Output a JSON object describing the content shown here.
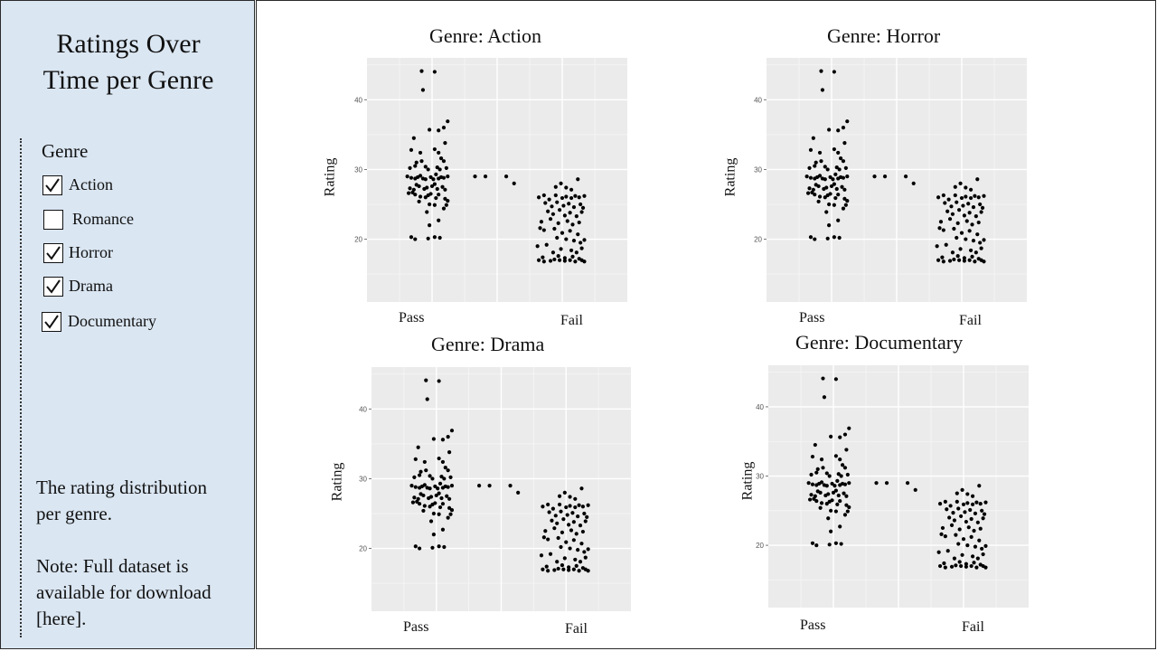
{
  "sidebar": {
    "title_line1": "Ratings Over",
    "title_line2": "Time per Genre",
    "filter_heading": "Genre",
    "genres": [
      {
        "label": "Action",
        "checked": true
      },
      {
        "label": "Romance",
        "checked": false
      },
      {
        "label": "Horror",
        "checked": true
      },
      {
        "label": "Drama",
        "checked": true
      },
      {
        "label": "Documentary",
        "checked": true
      }
    ],
    "description_line1": "The rating distribution",
    "description_line2": "per genre.",
    "note_line1": "Note: Full dataset is",
    "note_line2": "available for download",
    "note_line3": "[here]."
  },
  "chart_data": [
    {
      "type": "scatter",
      "title": "Genre: Action",
      "ylabel": "Rating",
      "categories": [
        "Pass",
        "Fail"
      ],
      "yticks": [
        20,
        30,
        40
      ],
      "ylim": [
        11,
        46
      ],
      "grid": true
    },
    {
      "type": "scatter",
      "title": "Genre: Horror",
      "ylabel": "Rating",
      "categories": [
        "Pass",
        "Fail"
      ],
      "yticks": [
        20,
        30,
        40
      ],
      "ylim": [
        11,
        46
      ],
      "grid": true
    },
    {
      "type": "scatter",
      "title": "Genre: Drama",
      "ylabel": "Rating",
      "categories": [
        "Pass",
        "Fail"
      ],
      "yticks": [
        20,
        30,
        40
      ],
      "ylim": [
        11,
        46
      ],
      "grid": true
    },
    {
      "type": "scatter",
      "title": "Genre: Documentary",
      "ylabel": "Rating",
      "categories": [
        "Pass",
        "Fail"
      ],
      "yticks": [
        20,
        30,
        40
      ],
      "ylim": [
        11,
        46
      ],
      "grid": true
    }
  ],
  "points": {
    "pass": [
      [
        0.42,
        44.1
      ],
      [
        0.52,
        44
      ],
      [
        0.43,
        41.4
      ],
      [
        0.48,
        35.7
      ],
      [
        0.55,
        35.6
      ],
      [
        0.62,
        36.9
      ],
      [
        0.59,
        36
      ],
      [
        0.6,
        33.8
      ],
      [
        0.36,
        34.5
      ],
      [
        0.34,
        32.8
      ],
      [
        0.41,
        32.4
      ],
      [
        0.52,
        32.9
      ],
      [
        0.55,
        32.4
      ],
      [
        0.57,
        31.6
      ],
      [
        0.59,
        31.2
      ],
      [
        0.38,
        31
      ],
      [
        0.42,
        31.2
      ],
      [
        0.33,
        30.2
      ],
      [
        0.37,
        30.5
      ],
      [
        0.45,
        30.4
      ],
      [
        0.47,
        30
      ],
      [
        0.54,
        30.3
      ],
      [
        0.56,
        30
      ],
      [
        0.61,
        30.2
      ],
      [
        0.31,
        29
      ],
      [
        0.34,
        28.8
      ],
      [
        0.37,
        28.7
      ],
      [
        0.39,
        28.9
      ],
      [
        0.41,
        29.1
      ],
      [
        0.43,
        28.7
      ],
      [
        0.45,
        28.6
      ],
      [
        0.49,
        28.9
      ],
      [
        0.51,
        28.6
      ],
      [
        0.53,
        29.3
      ],
      [
        0.55,
        28.7
      ],
      [
        0.57,
        28.9
      ],
      [
        0.59,
        28.8
      ],
      [
        0.62,
        29
      ],
      [
        0.33,
        27.3
      ],
      [
        0.36,
        27.1
      ],
      [
        0.38,
        27.8
      ],
      [
        0.4,
        27.6
      ],
      [
        0.44,
        27.2
      ],
      [
        0.46,
        27.4
      ],
      [
        0.5,
        27.6
      ],
      [
        0.52,
        27.9
      ],
      [
        0.54,
        27.2
      ],
      [
        0.58,
        27.5
      ],
      [
        0.6,
        27.1
      ],
      [
        0.32,
        26.6
      ],
      [
        0.35,
        26.7
      ],
      [
        0.37,
        26.4
      ],
      [
        0.41,
        26.1
      ],
      [
        0.45,
        26
      ],
      [
        0.47,
        26.3
      ],
      [
        0.49,
        26.5
      ],
      [
        0.53,
        25.9
      ],
      [
        0.55,
        26.4
      ],
      [
        0.6,
        25.8
      ],
      [
        0.62,
        25.5
      ],
      [
        0.4,
        25.4
      ],
      [
        0.48,
        25
      ],
      [
        0.52,
        24.9
      ],
      [
        0.59,
        24.4
      ],
      [
        0.61,
        24.9
      ],
      [
        0.46,
        23.9
      ],
      [
        0.55,
        22.7
      ],
      [
        0.48,
        22
      ],
      [
        0.34,
        20.3
      ],
      [
        0.37,
        20
      ],
      [
        0.47,
        20.1
      ],
      [
        0.52,
        20.3
      ],
      [
        0.56,
        20.2
      ]
    ],
    "middle": [
      [
        0.83,
        29
      ],
      [
        0.91,
        29
      ],
      [
        1.07,
        29
      ],
      [
        1.13,
        28
      ]
    ],
    "fail": [
      [
        1.32,
        26
      ],
      [
        1.36,
        26.3
      ],
      [
        1.4,
        25.7
      ],
      [
        1.45,
        26.3
      ],
      [
        1.5,
        25.9
      ],
      [
        1.53,
        26.1
      ],
      [
        1.57,
        25.9
      ],
      [
        1.6,
        26.2
      ],
      [
        1.63,
        26
      ],
      [
        1.67,
        26.2
      ],
      [
        1.45,
        27.5
      ],
      [
        1.49,
        28
      ],
      [
        1.53,
        27.4
      ],
      [
        1.57,
        27.1
      ],
      [
        1.62,
        28.6
      ],
      [
        1.37,
        25.2
      ],
      [
        1.42,
        24.7
      ],
      [
        1.46,
        25.3
      ],
      [
        1.51,
        24.8
      ],
      [
        1.55,
        25.1
      ],
      [
        1.59,
        24.6
      ],
      [
        1.64,
        25
      ],
      [
        1.66,
        24.5
      ],
      [
        1.39,
        24
      ],
      [
        1.43,
        23.6
      ],
      [
        1.48,
        24.2
      ],
      [
        1.52,
        23.4
      ],
      [
        1.56,
        23.8
      ],
      [
        1.61,
        23.3
      ],
      [
        1.65,
        23.9
      ],
      [
        1.34,
        22.5
      ],
      [
        1.41,
        22.9
      ],
      [
        1.47,
        22.3
      ],
      [
        1.54,
        22.6
      ],
      [
        1.58,
        22.1
      ],
      [
        1.63,
        22.4
      ],
      [
        1.33,
        21.6
      ],
      [
        1.36,
        21.3
      ],
      [
        1.44,
        21.5
      ],
      [
        1.5,
        20.9
      ],
      [
        1.56,
        21.2
      ],
      [
        1.62,
        20.7
      ],
      [
        1.46,
        20.2
      ],
      [
        1.53,
        20
      ],
      [
        1.59,
        19.8
      ],
      [
        1.64,
        19.5
      ],
      [
        1.67,
        19.9
      ],
      [
        1.31,
        19
      ],
      [
        1.38,
        19.2
      ],
      [
        1.49,
        18.6
      ],
      [
        1.57,
        18.4
      ],
      [
        1.61,
        18.1
      ],
      [
        1.65,
        18.7
      ],
      [
        1.43,
        18.1
      ],
      [
        1.35,
        17.4
      ],
      [
        1.47,
        17.6
      ],
      [
        1.52,
        17.3
      ],
      [
        1.58,
        17.5
      ],
      [
        1.63,
        17.2
      ],
      [
        1.32,
        17
      ],
      [
        1.36,
        16.8
      ],
      [
        1.41,
        16.9
      ],
      [
        1.44,
        17.1
      ],
      [
        1.48,
        17
      ],
      [
        1.52,
        16.9
      ],
      [
        1.56,
        17
      ],
      [
        1.6,
        16.8
      ],
      [
        1.65,
        17
      ],
      [
        1.67,
        16.8
      ]
    ]
  }
}
